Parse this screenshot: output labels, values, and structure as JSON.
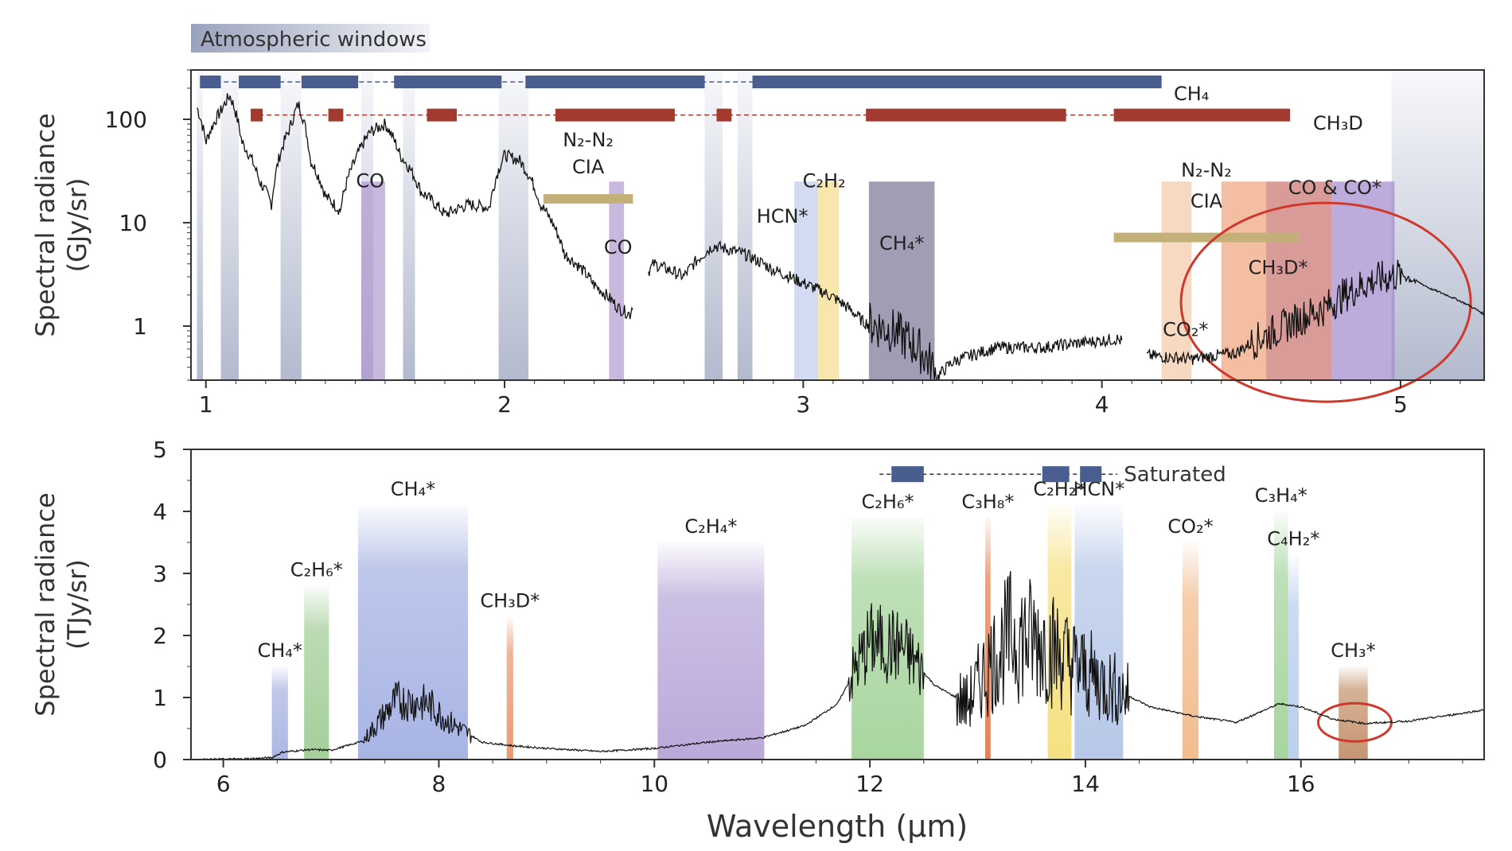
{
  "chart_data": [
    {
      "type": "line",
      "yscale": "log",
      "xlim": [
        0.95,
        5.28
      ],
      "ylim": [
        0.3,
        300
      ],
      "xticks": [
        1,
        2,
        3,
        4,
        5
      ],
      "yticks": [
        1,
        10,
        100
      ],
      "ylabel": "Spectral radiance",
      "ylabel_unit": "(GJy/sr)",
      "legend_windows": "Atmospheric windows",
      "windows": [
        [
          0.97,
          0.99
        ],
        [
          1.05,
          1.11
        ],
        [
          1.25,
          1.32
        ],
        [
          1.52,
          1.56
        ],
        [
          1.66,
          1.7
        ],
        [
          1.98,
          2.08
        ],
        [
          2.67,
          2.73
        ],
        [
          2.78,
          2.83
        ],
        [
          4.97,
          5.28
        ]
      ],
      "spectrum_points": [
        [
          0.97,
          130
        ],
        [
          1.0,
          60
        ],
        [
          1.05,
          120
        ],
        [
          1.08,
          170
        ],
        [
          1.12,
          60
        ],
        [
          1.18,
          25
        ],
        [
          1.22,
          15
        ],
        [
          1.28,
          80
        ],
        [
          1.31,
          140
        ],
        [
          1.35,
          40
        ],
        [
          1.4,
          18
        ],
        [
          1.45,
          13
        ],
        [
          1.5,
          40
        ],
        [
          1.55,
          75
        ],
        [
          1.6,
          90
        ],
        [
          1.65,
          45
        ],
        [
          1.72,
          20
        ],
        [
          1.8,
          12
        ],
        [
          1.88,
          15
        ],
        [
          1.95,
          14
        ],
        [
          2.0,
          45
        ],
        [
          2.05,
          40
        ],
        [
          2.12,
          15
        ],
        [
          2.2,
          5
        ],
        [
          2.3,
          2.5
        ],
        [
          2.38,
          1.5
        ],
        [
          2.42,
          1.3
        ],
        [
          2.5,
          4
        ],
        [
          2.6,
          3
        ],
        [
          2.7,
          6
        ],
        [
          2.8,
          5
        ],
        [
          2.9,
          3.5
        ],
        [
          3.0,
          2.6
        ],
        [
          3.1,
          1.9
        ],
        [
          3.2,
          1.1
        ],
        [
          3.3,
          0.9
        ],
        [
          3.4,
          0.55
        ],
        [
          3.45,
          0.32
        ],
        [
          3.5,
          0.45
        ],
        [
          3.65,
          0.62
        ],
        [
          3.8,
          0.62
        ],
        [
          3.95,
          0.7
        ],
        [
          4.05,
          0.75
        ],
        [
          4.15,
          0.52
        ],
        [
          4.3,
          0.48
        ],
        [
          4.45,
          0.55
        ],
        [
          4.6,
          0.95
        ],
        [
          4.75,
          1.5
        ],
        [
          4.9,
          2.7
        ],
        [
          5.0,
          3.2
        ],
        [
          5.1,
          2.3
        ],
        [
          5.28,
          1.3
        ]
      ],
      "annotations": [
        {
          "text": "CO",
          "x": 1.55,
          "y": 22
        },
        {
          "text": "N₂-N₂",
          "x": 2.28,
          "y": 55
        },
        {
          "text": "CIA",
          "x": 2.28,
          "y": 30
        },
        {
          "text": "CO",
          "x": 2.38,
          "y": 5
        },
        {
          "text": "HCN*",
          "x": 2.93,
          "y": 10
        },
        {
          "text": "C₂H₂",
          "x": 3.07,
          "y": 22
        },
        {
          "text": "CH₄*",
          "x": 3.33,
          "y": 5.5
        },
        {
          "text": "N₂-N₂",
          "x": 4.35,
          "y": 28
        },
        {
          "text": "CIA",
          "x": 4.35,
          "y": 14
        },
        {
          "text": "CO & CO*",
          "x": 4.78,
          "y": 19
        },
        {
          "text": "CH₃D*",
          "x": 4.59,
          "y": 3.2
        },
        {
          "text": "CO₂*",
          "x": 4.28,
          "y": 0.8
        }
      ],
      "bands": [
        {
          "x": [
            1.52,
            1.6
          ],
          "color": "#b09ad0"
        },
        {
          "x": [
            2.35,
            2.4
          ],
          "color": "#b09ad0"
        },
        {
          "x": [
            2.97,
            3.05
          ],
          "color": "#c0ccec"
        },
        {
          "x": [
            3.05,
            3.12
          ],
          "color": "#f5dd8a"
        },
        {
          "x": [
            3.22,
            3.44
          ],
          "color": "#7a7496"
        },
        {
          "x": [
            4.2,
            4.3
          ],
          "color": "#f3c9a6"
        },
        {
          "x": [
            4.4,
            4.55
          ],
          "color": "#f0a27c"
        },
        {
          "x": [
            4.55,
            4.77
          ],
          "color": "#c8706c"
        },
        {
          "x": [
            4.77,
            4.98
          ],
          "color": "#a088cc"
        }
      ],
      "cia_bars": [
        {
          "x": [
            2.13,
            2.43
          ],
          "y": 17
        },
        {
          "x": [
            4.04,
            4.66
          ],
          "y": 7.2
        }
      ],
      "ch4_label": "CH₄",
      "ch4_color": "#4a5d8f",
      "ch4_segments": [
        [
          0.98,
          1.05
        ],
        [
          1.11,
          1.25
        ],
        [
          1.32,
          1.51
        ],
        [
          1.63,
          1.99
        ],
        [
          2.07,
          2.67
        ],
        [
          2.83,
          4.2
        ]
      ],
      "ch4_y": 230,
      "ch3d_label": "CH₃D",
      "ch3d_color": "#a33a2f",
      "ch3d_segments": [
        [
          1.15,
          1.19
        ],
        [
          1.41,
          1.46
        ],
        [
          1.74,
          1.84
        ],
        [
          2.17,
          2.57
        ],
        [
          2.71,
          2.76
        ],
        [
          3.21,
          3.88
        ],
        [
          4.04,
          4.63
        ]
      ],
      "ch3d_y": 110,
      "highlight_ellipse": {
        "cx": 4.75,
        "cy": 1.7,
        "color": "#d0382c"
      }
    },
    {
      "type": "line",
      "xlim": [
        5.7,
        17.7
      ],
      "ylim": [
        0,
        5
      ],
      "xticks": [
        6,
        8,
        10,
        12,
        14,
        16
      ],
      "yticks": [
        0,
        1,
        2,
        3,
        4,
        5
      ],
      "xlabel": "Wavelength (μm)",
      "ylabel": "Spectral radiance",
      "ylabel_unit": "(TJy/sr)",
      "spectrum_points": [
        [
          5.7,
          0.0
        ],
        [
          6.2,
          0.01
        ],
        [
          6.45,
          0.03
        ],
        [
          6.55,
          0.12
        ],
        [
          6.8,
          0.16
        ],
        [
          7.0,
          0.15
        ],
        [
          7.3,
          0.3
        ],
        [
          7.6,
          0.95
        ],
        [
          7.9,
          0.9
        ],
        [
          8.1,
          0.6
        ],
        [
          8.4,
          0.28
        ],
        [
          8.7,
          0.22
        ],
        [
          9.0,
          0.18
        ],
        [
          9.5,
          0.13
        ],
        [
          10.0,
          0.18
        ],
        [
          10.5,
          0.28
        ],
        [
          11.0,
          0.35
        ],
        [
          11.4,
          0.55
        ],
        [
          11.7,
          0.9
        ],
        [
          12.0,
          1.9
        ],
        [
          12.3,
          1.8
        ],
        [
          12.6,
          1.2
        ],
        [
          12.9,
          0.9
        ],
        [
          13.1,
          1.5
        ],
        [
          13.3,
          2.0
        ],
        [
          13.6,
          1.9
        ],
        [
          13.9,
          1.5
        ],
        [
          14.2,
          1.2
        ],
        [
          14.6,
          0.85
        ],
        [
          15.0,
          0.7
        ],
        [
          15.4,
          0.6
        ],
        [
          15.8,
          0.9
        ],
        [
          16.0,
          0.85
        ],
        [
          16.3,
          0.65
        ],
        [
          16.6,
          0.58
        ],
        [
          17.0,
          0.62
        ],
        [
          17.4,
          0.72
        ],
        [
          17.7,
          0.8
        ]
      ],
      "bands": [
        {
          "x": [
            6.45,
            6.6
          ],
          "color": "#a7b2e2",
          "top": 1.5,
          "label": "CH₄*"
        },
        {
          "x": [
            6.75,
            6.98
          ],
          "color": "#9fcc94",
          "top": 2.8,
          "label": "C₂H₆*"
        },
        {
          "x": [
            7.25,
            8.27
          ],
          "color": "#a3b0e3",
          "top": 4.1,
          "label": "CH₄*"
        },
        {
          "x": [
            8.63,
            8.69
          ],
          "color": "#e9956c",
          "top": 2.3,
          "label": "CH₃D*"
        },
        {
          "x": [
            10.03,
            11.02
          ],
          "color": "#b6a4d8",
          "top": 3.5,
          "label": "C₂H₄*"
        },
        {
          "x": [
            11.83,
            12.5
          ],
          "color": "#a4d39a",
          "top": 3.9,
          "label": "C₂H₆*"
        },
        {
          "x": [
            13.07,
            13.12
          ],
          "color": "#e07c50",
          "top": 3.9,
          "label": "C₃H₈*"
        },
        {
          "x": [
            13.65,
            13.87
          ],
          "color": "#f5df7a",
          "top": 4.1,
          "label": "C₂H₂*"
        },
        {
          "x": [
            13.9,
            14.35
          ],
          "color": "#b3c5e7",
          "top": 4.1,
          "label": "HCN*"
        },
        {
          "x": [
            14.9,
            15.05
          ],
          "color": "#f1b98a",
          "top": 3.5,
          "label": "CO₂*"
        },
        {
          "x": [
            15.75,
            15.88
          ],
          "color": "#a2d39a",
          "top": 4.0,
          "label": "C₃H₄*"
        },
        {
          "x": [
            15.88,
            15.98
          ],
          "color": "#b7ccf0",
          "top": 3.3,
          "label": "C₄H₂*"
        },
        {
          "x": [
            16.35,
            16.62
          ],
          "color": "#c3906a",
          "top": 1.5,
          "label": "CH₃*"
        }
      ],
      "saturated_label": "Saturated",
      "saturated_color": "#4a5d8f",
      "saturated_segments": [
        [
          12.2,
          12.5
        ],
        [
          13.6,
          13.85
        ],
        [
          13.95,
          14.15
        ]
      ],
      "saturated_y": 4.6,
      "highlight_ellipse": {
        "cx": 16.5,
        "cy": 0.6,
        "color": "#d0382c"
      }
    }
  ]
}
